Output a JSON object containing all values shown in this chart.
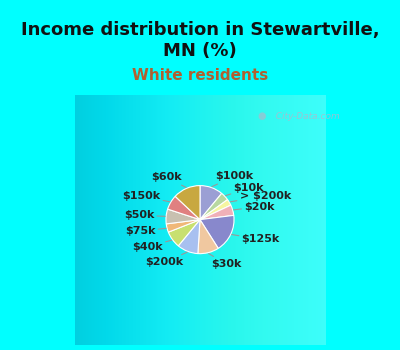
{
  "title": "Income distribution in Stewartville,\nMN (%)",
  "subtitle": "White residents",
  "background_color": "#00FFFF",
  "chart_bg_gradient_left": "#e8f5ef",
  "chart_bg_gradient_right": "#f5faf8",
  "labels": [
    "$100k",
    "$10k",
    "> $200k",
    "$20k",
    "$125k",
    "$30k",
    "$200k",
    "$40k",
    "$75k",
    "$50k",
    "$150k",
    "$60k"
  ],
  "values": [
    11,
    4,
    3,
    5,
    18,
    10,
    10,
    8,
    4,
    7,
    7,
    13
  ],
  "colors": [
    "#9b9fd4",
    "#b8d8a0",
    "#f5f5a0",
    "#f0b0b8",
    "#8888cc",
    "#f0c8a0",
    "#a8c0f0",
    "#c8e070",
    "#f0b878",
    "#c8c0b0",
    "#e08080",
    "#c8a840"
  ],
  "title_fontsize": 13,
  "subtitle_fontsize": 11,
  "subtitle_color": "#b06030",
  "label_fontsize": 8,
  "watermark": "  City-Data.com",
  "watermark_color": "#aabbcc"
}
